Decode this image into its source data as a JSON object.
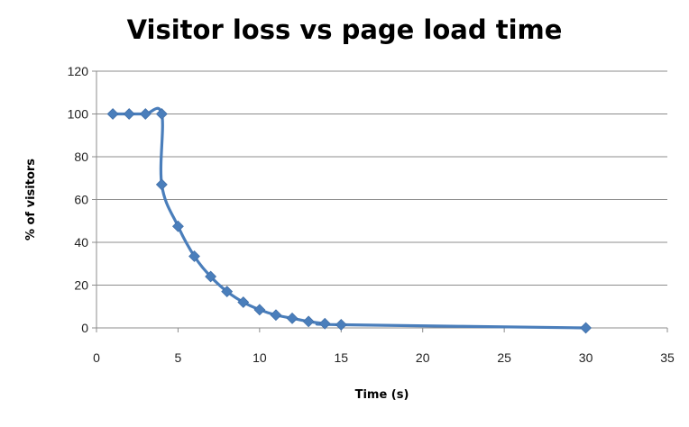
{
  "chart_data": {
    "type": "line",
    "title": "Visitor loss vs page load time",
    "xlabel": "Time (s)",
    "ylabel": "% of visitors",
    "xlim": [
      0,
      35
    ],
    "ylim": [
      0,
      120
    ],
    "xticks": [
      0,
      5,
      10,
      15,
      20,
      25,
      30,
      35
    ],
    "yticks": [
      0,
      20,
      40,
      60,
      80,
      100,
      120
    ],
    "grid": "horizontal",
    "legend": "none",
    "series": [
      {
        "color": "#4a7ebb",
        "marker": "diamond",
        "x": [
          1,
          2,
          3,
          4,
          4,
          5,
          6,
          7,
          8,
          9,
          10,
          11,
          12,
          13,
          14,
          15,
          30
        ],
        "y": [
          100,
          100,
          100,
          100,
          67,
          47.5,
          33.5,
          24,
          17,
          12,
          8.5,
          6,
          4.5,
          3,
          2,
          1.5,
          0
        ]
      }
    ]
  }
}
